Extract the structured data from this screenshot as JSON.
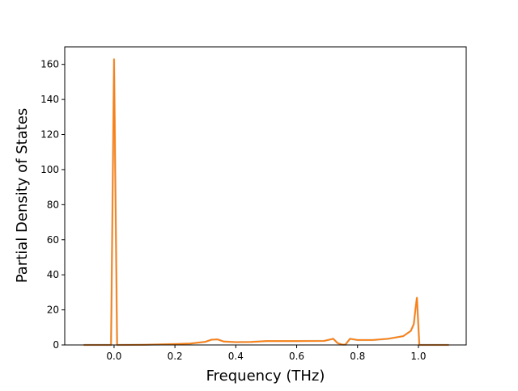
{
  "chart_data": {
    "type": "line",
    "title": "",
    "xlabel": "Frequency (THz)",
    "ylabel": "Partial Density of States",
    "xlim": [
      -0.162,
      1.157
    ],
    "ylim": [
      0,
      170
    ],
    "xticks": [
      0.0,
      0.2,
      0.4,
      0.6,
      0.8,
      1.0
    ],
    "xtick_labels": [
      "0.0",
      "0.2",
      "0.4",
      "0.6",
      "0.8",
      "1.0"
    ],
    "yticks": [
      0,
      20,
      40,
      60,
      80,
      100,
      120,
      140,
      160
    ],
    "ytick_labels": [
      "0",
      "20",
      "40",
      "60",
      "80",
      "100",
      "120",
      "140",
      "160"
    ],
    "grid": false,
    "series": [
      {
        "color": "#ff7f0e",
        "x": [
          -0.1,
          -0.01,
          -0.005,
          0.0,
          0.005,
          0.01,
          0.1,
          0.2,
          0.25,
          0.3,
          0.32,
          0.34,
          0.36,
          0.4,
          0.45,
          0.5,
          0.6,
          0.69,
          0.72,
          0.735,
          0.75,
          0.76,
          0.775,
          0.8,
          0.85,
          0.9,
          0.95,
          0.975,
          0.985,
          0.99,
          0.995,
          1.0,
          1.003,
          1.1
        ],
        "y": [
          0,
          0,
          80,
          163,
          80,
          0,
          0.1,
          0.5,
          0.8,
          1.8,
          3.0,
          3.2,
          2.0,
          1.6,
          1.7,
          2.2,
          2.2,
          2.3,
          3.5,
          1.0,
          0.2,
          0.2,
          3.5,
          2.8,
          2.8,
          3.5,
          5.0,
          8.0,
          12.0,
          20.0,
          27.0,
          10.0,
          0,
          0
        ]
      }
    ]
  }
}
